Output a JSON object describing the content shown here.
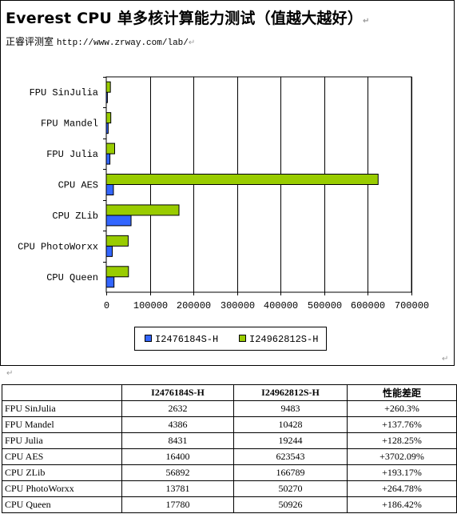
{
  "header": {
    "title": "Everest CPU 单多核计算能力测试（值越大越好）",
    "subtitle_prefix": "正睿评测室",
    "subtitle_url": "http://www.zrway.com/lab/"
  },
  "chart_data": {
    "type": "bar",
    "orientation": "horizontal",
    "categories": [
      "FPU SinJulia",
      "FPU Mandel",
      "FPU Julia",
      "CPU AES",
      "CPU ZLib",
      "CPU PhotoWorxx",
      "CPU Queen"
    ],
    "series": [
      {
        "name": "I2476184S-H",
        "color": "#3366ff",
        "values": [
          2632,
          4386,
          8431,
          16400,
          56892,
          13781,
          17780
        ]
      },
      {
        "name": "I24962812S-H",
        "color": "#99cc00",
        "values": [
          9483,
          10428,
          19244,
          623543,
          166789,
          50270,
          50926
        ]
      }
    ],
    "xlim": [
      0,
      700000
    ],
    "xticks": [
      0,
      100000,
      200000,
      300000,
      400000,
      500000,
      600000,
      700000
    ],
    "xgrid": true,
    "legend_position": "bottom"
  },
  "table": {
    "headers": [
      "",
      "I2476184S-H",
      "I24962812S-H",
      "性能差距"
    ],
    "rows": [
      [
        "FPU SinJulia",
        "2632",
        "9483",
        "+260.3%"
      ],
      [
        "FPU Mandel",
        "4386",
        "10428",
        "+137.76%"
      ],
      [
        "FPU Julia",
        "8431",
        "19244",
        "+128.25%"
      ],
      [
        "CPU AES",
        "16400",
        "623543",
        "+3702.09%"
      ],
      [
        "CPU ZLib",
        "56892",
        "166789",
        "+193.17%"
      ],
      [
        "CPU PhotoWorxx",
        "13781",
        "50270",
        "+264.78%"
      ],
      [
        "CPU Queen",
        "17780",
        "50926",
        "+186.42%"
      ]
    ]
  }
}
